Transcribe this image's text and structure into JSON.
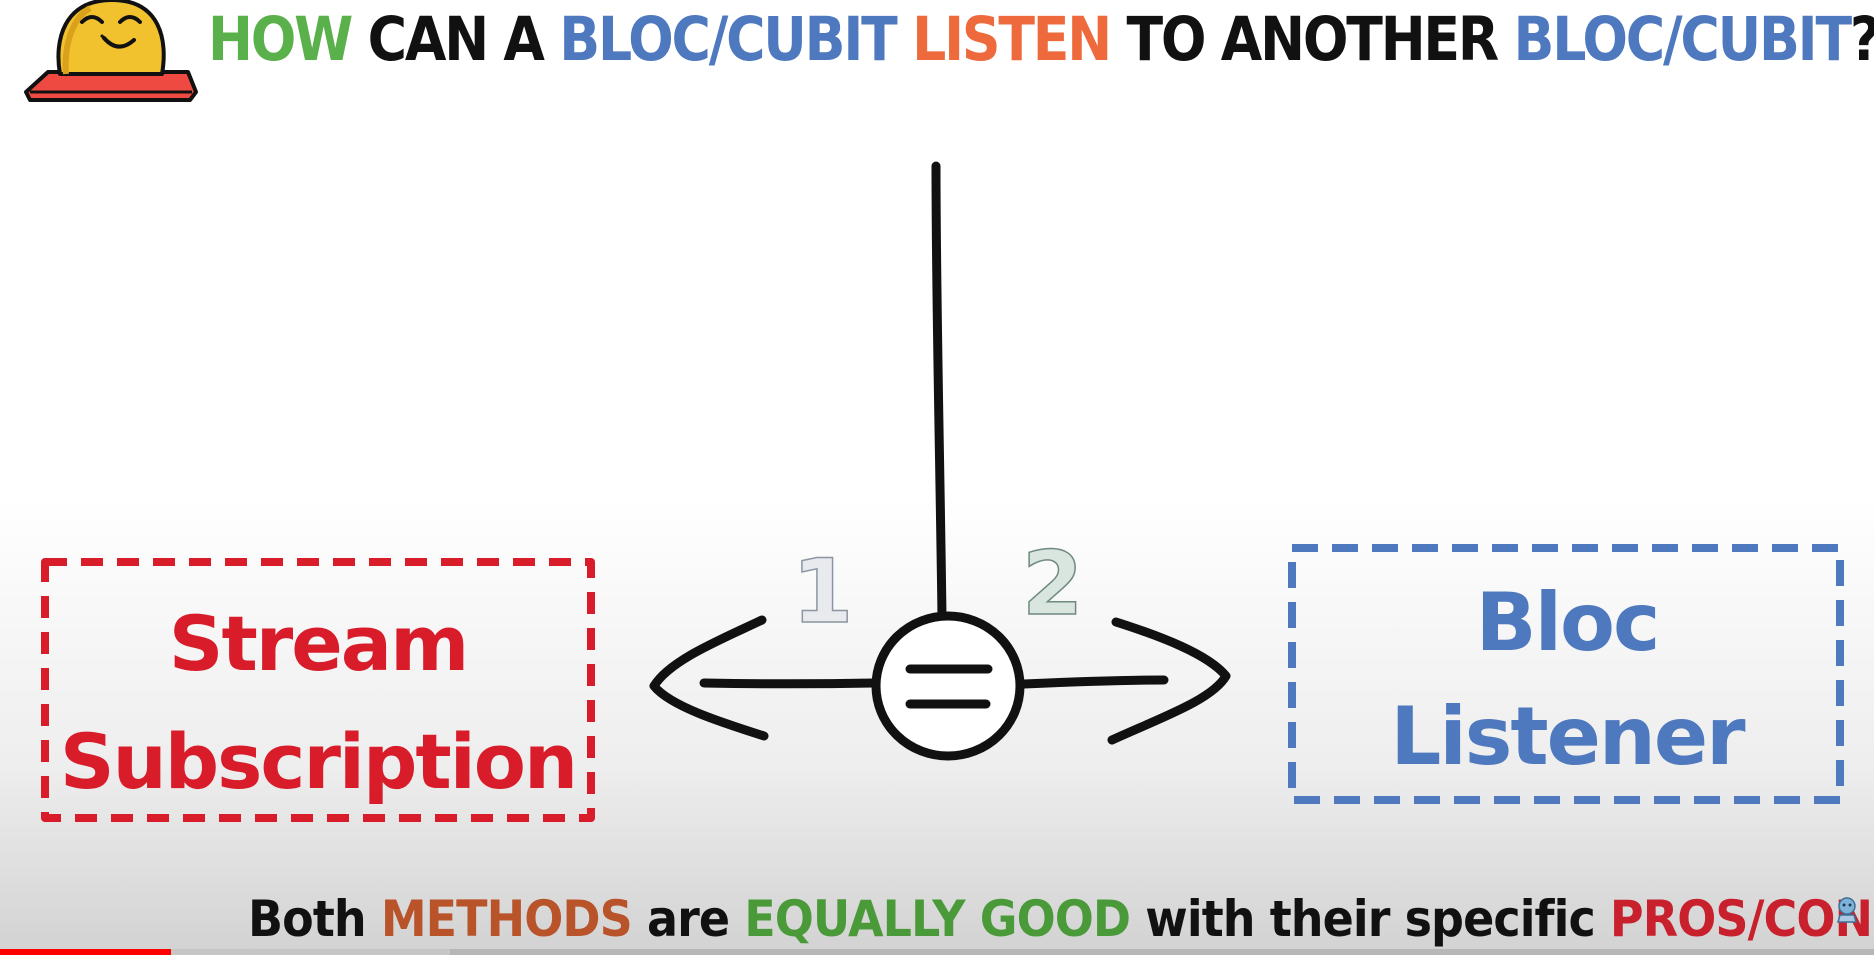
{
  "title": {
    "part1": "HOW",
    "part2": " CAN A ",
    "part3": "BLOC/CUBIT",
    "part4": " ",
    "part5": "LISTEN",
    "part6": " TO ANOTHER ",
    "part7": "BLOC/CUBIT",
    "part8": "?"
  },
  "diagram": {
    "left_option": {
      "line1": "Stream",
      "line2": "Subscription"
    },
    "right_option": {
      "line1": "Bloc",
      "line2": "Listener"
    },
    "number_left": "1",
    "number_right": "2",
    "equals_symbol": "="
  },
  "caption": {
    "w1": "Both ",
    "w2": "METHODS",
    "w3": " are ",
    "w4": "EQUALLY GOOD",
    "w5": " with their specific ",
    "w6": "PROS/CONS"
  },
  "player": {
    "progress_fraction": 0.091
  },
  "colors": {
    "accent_green": "#5ab04a",
    "accent_blue": "#4f79be",
    "accent_orange": "#ee6a3c",
    "box_red": "#d91c2a",
    "box_blue": "#4f79be",
    "progress_red": "#ff0000"
  },
  "icons": {
    "mascot": "smiling-mascot-icon",
    "equals": "equals-circle-icon",
    "watermark": "channel-watermark-icon"
  }
}
